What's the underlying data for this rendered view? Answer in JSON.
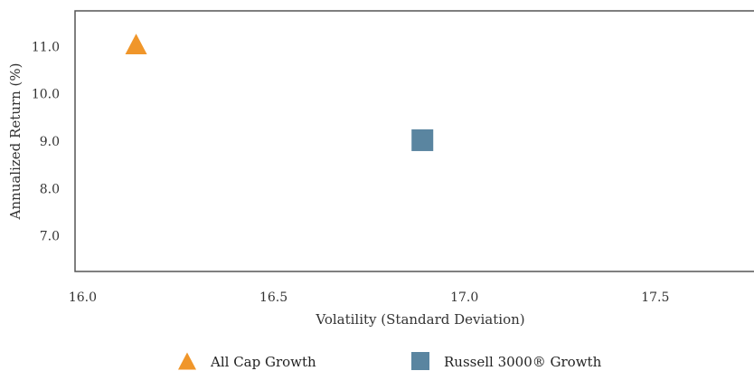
{
  "chart_data": {
    "type": "scatter",
    "title": "",
    "xlabel": "Volatility (Standard Deviation)",
    "ylabel": "Annualized Return (%)",
    "xlim": [
      15.98,
      17.78
    ],
    "ylim": [
      6.25,
      11.75
    ],
    "x_ticks": [
      16.0,
      16.5,
      17.0,
      17.5
    ],
    "x_tick_labels": [
      "16.0",
      "16.5",
      "17.0",
      "17.5"
    ],
    "y_ticks": [
      7.0,
      8.0,
      9.0,
      10.0,
      11.0
    ],
    "y_tick_labels": [
      "7.0",
      "8.0",
      "9.0",
      "10.0",
      "11.0"
    ],
    "grid": false,
    "legend_position": "bottom",
    "series": [
      {
        "name": "All Cap Growth",
        "marker": "triangle",
        "color": "#F0962A",
        "points": [
          {
            "x": 16.14,
            "y": 11.05
          }
        ]
      },
      {
        "name": "Russell 3000® Growth",
        "marker": "square",
        "color": "#5A85A0",
        "points": [
          {
            "x": 16.89,
            "y": 9.02
          }
        ]
      }
    ]
  }
}
